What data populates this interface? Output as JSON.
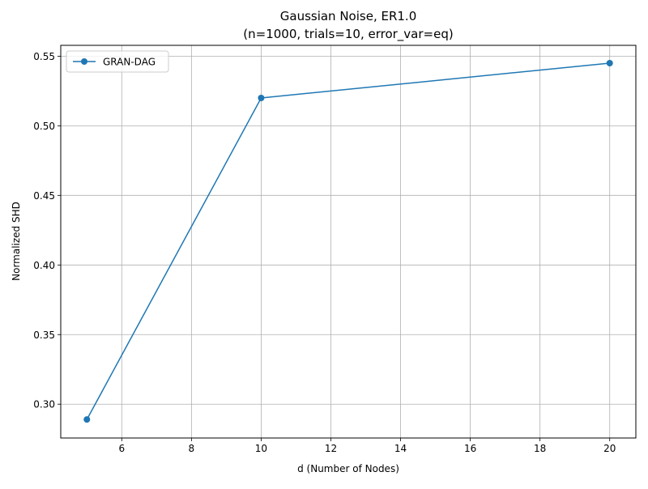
{
  "chart_data": {
    "type": "line",
    "title": "Gaussian Noise, ER1.0",
    "subtitle": "(n=1000, trials=10, error_var=eq)",
    "xlabel": "d (Number of Nodes)",
    "ylabel": "Normalized SHD",
    "xlim": [
      4.25,
      20.75
    ],
    "ylim": [
      0.2757,
      0.5578
    ],
    "xticks": [
      6,
      8,
      10,
      12,
      14,
      16,
      18,
      20
    ],
    "yticks": [
      0.3,
      0.35,
      0.4,
      0.45,
      0.5,
      0.55
    ],
    "xtick_labels": [
      "6",
      "8",
      "10",
      "12",
      "14",
      "16",
      "18",
      "20"
    ],
    "ytick_labels": [
      "0.30",
      "0.35",
      "0.40",
      "0.45",
      "0.50",
      "0.55"
    ],
    "grid": true,
    "legend_position": "upper-left",
    "series": [
      {
        "name": "GRAN-DAG",
        "color": "#1f77b4",
        "marker": "circle",
        "x": [
          5,
          10,
          20
        ],
        "y": [
          0.289,
          0.52,
          0.545
        ]
      }
    ]
  }
}
